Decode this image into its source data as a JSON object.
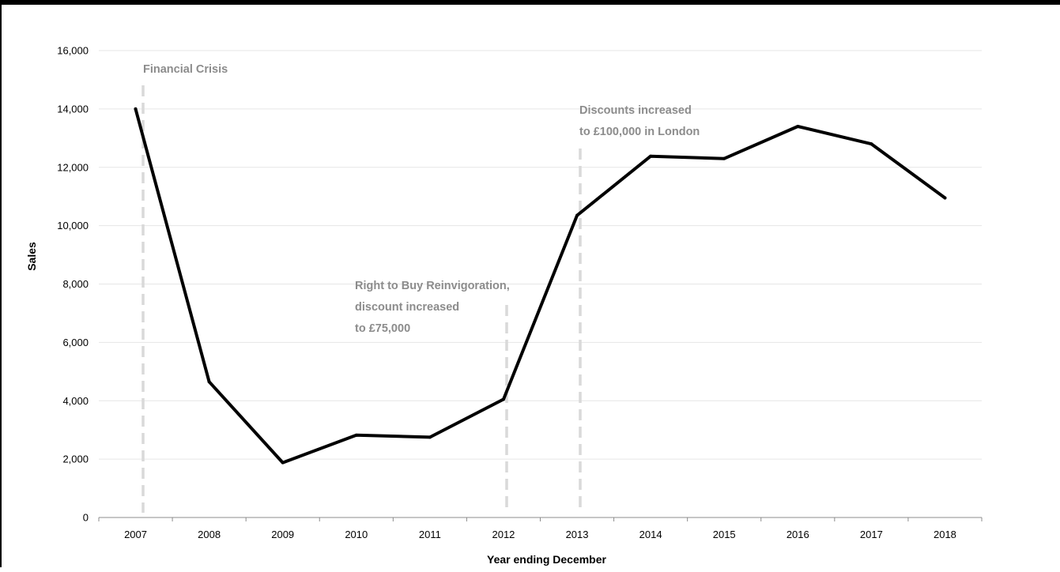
{
  "chart_data": {
    "type": "line",
    "title": "",
    "xlabel": "Year ending December",
    "ylabel": "Sales",
    "ylim": [
      0,
      16000
    ],
    "yticks": [
      0,
      2000,
      4000,
      6000,
      8000,
      10000,
      12000,
      14000,
      16000
    ],
    "ytick_labels": [
      "0",
      "2,000",
      "4,000",
      "6,000",
      "8,000",
      "10,000",
      "12,000",
      "14,000",
      "16,000"
    ],
    "grid": true,
    "legend": "none",
    "categories": [
      "2007",
      "2008",
      "2009",
      "2010",
      "2011",
      "2012",
      "2013",
      "2014",
      "2015",
      "2016",
      "2017",
      "2018"
    ],
    "series": [
      {
        "name": "",
        "color": "#000000",
        "values": [
          14000,
          4650,
          1880,
          2820,
          2750,
          4050,
          10350,
          12380,
          12300,
          13400,
          12800,
          10950
        ]
      }
    ],
    "annotations": [
      {
        "at_year": 2007,
        "lines": [
          "Financial Crisis"
        ],
        "style": "dashed",
        "color": "#d9d9d9"
      },
      {
        "at_year": 2012,
        "lines": [
          "Right to Buy Reinvigoration,",
          "discount increased",
          "to £75,000"
        ],
        "style": "dashed",
        "color": "#d9d9d9"
      },
      {
        "at_year": 2013,
        "lines": [
          "Discounts increased",
          "to £100,000 in London"
        ],
        "style": "dashed",
        "color": "#d9d9d9"
      }
    ]
  }
}
